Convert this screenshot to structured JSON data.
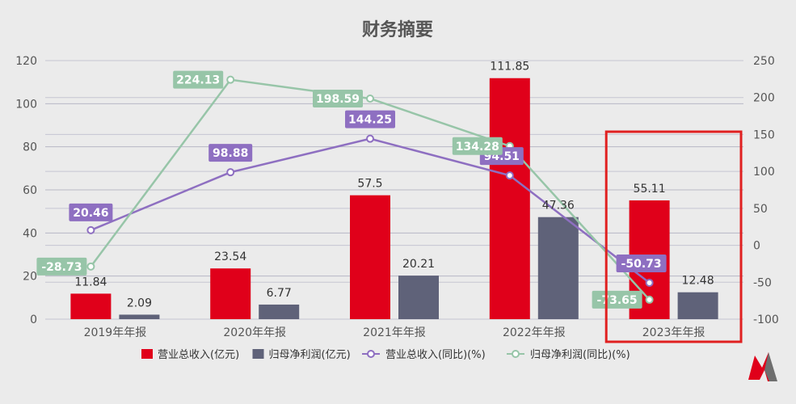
{
  "chart_data": {
    "type": "bar",
    "title": "财务摘要",
    "categories": [
      "2019年年报",
      "2020年年报",
      "2021年年报",
      "2022年年报",
      "2023年年报"
    ],
    "ylim_left": [
      0,
      120
    ],
    "yticks_left": [
      0,
      20,
      40,
      60,
      80,
      100,
      120
    ],
    "ylim_right": [
      -100,
      250
    ],
    "yticks_right": [
      -100,
      -50,
      0,
      50,
      100,
      150,
      200,
      250
    ],
    "series": [
      {
        "name": "营业总收入(亿元)",
        "kind": "bar",
        "axis": "left",
        "color": "#e0001a",
        "values": [
          11.84,
          23.54,
          57.5,
          111.85,
          55.11
        ]
      },
      {
        "name": "归母净利润(亿元)",
        "kind": "bar",
        "axis": "left",
        "color": "#5f6279",
        "values": [
          2.09,
          6.77,
          20.21,
          47.36,
          12.48
        ]
      },
      {
        "name": "营业总收入(同比)(%)",
        "kind": "line",
        "axis": "right",
        "color": "#8e6fc1",
        "values": [
          20.46,
          98.88,
          144.25,
          94.51,
          -50.73
        ]
      },
      {
        "name": "归母净利润(同比)(%)",
        "kind": "line",
        "axis": "right",
        "color": "#97c5a8",
        "values": [
          -28.73,
          224.13,
          198.59,
          134.28,
          -73.65
        ]
      }
    ],
    "value_labels": {
      "bars": [
        [
          "11.84",
          "23.54",
          "57.5",
          "111.85",
          "55.11"
        ],
        [
          "2.09",
          "6.77",
          "20.21",
          "47.36",
          "12.48"
        ]
      ],
      "lines": [
        [
          "20.46",
          "98.88",
          "144.25",
          "94.51",
          "-50.73"
        ],
        [
          "-28.73",
          "224.13",
          "198.59",
          "134.28",
          "-73.65"
        ]
      ]
    },
    "highlight_category": "2023年年报",
    "highlight_color": "#e02020",
    "grid": true,
    "legend_position": "bottom"
  }
}
